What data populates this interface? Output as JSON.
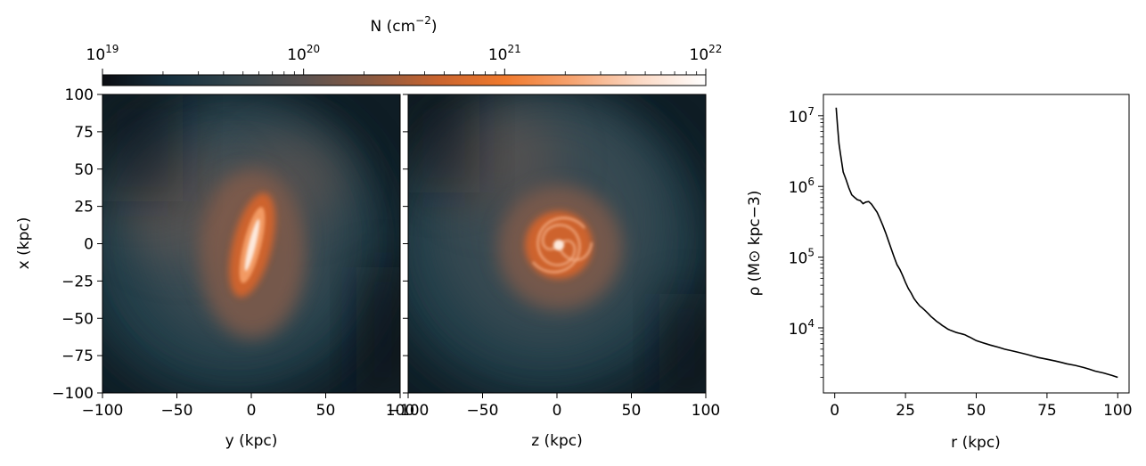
{
  "colorbar": {
    "label_main": "N (cm",
    "label_exp": "−2",
    "label_close": ")",
    "ticks": [
      {
        "value": 19,
        "base": "10",
        "exp": "19"
      },
      {
        "value": 20,
        "base": "10",
        "exp": "20"
      },
      {
        "value": 21,
        "base": "10",
        "exp": "21"
      },
      {
        "value": 22,
        "base": "10",
        "exp": "22"
      }
    ],
    "range_log10": [
      19,
      22
    ],
    "scale": "log",
    "colors": [
      "#0b0d12",
      "#17303e",
      "#34454c",
      "#5a5250",
      "#8a5a42",
      "#c9642f",
      "#f07a2e",
      "#f6a370",
      "#fbd8c3",
      "#ffffff"
    ]
  },
  "chart_data": [
    {
      "type": "heatmap",
      "title": "",
      "xlabel": "y (kpc)",
      "ylabel": "x (kpc)",
      "xlim": [
        -100,
        100
      ],
      "ylim": [
        -100,
        100
      ],
      "xticks": [
        "−100",
        "−50",
        "0",
        "50",
        "100"
      ],
      "yticks": [
        "100",
        "75",
        "50",
        "25",
        "0",
        "−25",
        "−50",
        "−75",
        "−100"
      ],
      "view": "edge-on"
    },
    {
      "type": "heatmap",
      "title": "",
      "xlabel": "z (kpc)",
      "ylabel": "",
      "xlim": [
        -100,
        100
      ],
      "ylim": [
        -100,
        100
      ],
      "xticks": [
        "−100",
        "−50",
        "0",
        "50",
        "100"
      ],
      "view": "face-on"
    },
    {
      "type": "line",
      "title": "",
      "xlabel": "r (kpc)",
      "ylabel": "ρ (M⊙ kpc−3)",
      "xlim": [
        -4,
        104
      ],
      "ylim_log10": [
        3.08,
        7.3
      ],
      "yscale": "log",
      "xticks": [
        "0",
        "25",
        "50",
        "75",
        "100"
      ],
      "yticks": [
        {
          "value": 4,
          "base": "10",
          "exp": "4"
        },
        {
          "value": 5,
          "base": "10",
          "exp": "5"
        },
        {
          "value": 6,
          "base": "10",
          "exp": "6"
        },
        {
          "value": 7,
          "base": "10",
          "exp": "7"
        }
      ],
      "series": [
        {
          "color": "#000000",
          "x": [
            0.5,
            1.0,
            1.5,
            2.0,
            3.0,
            4.0,
            5.0,
            6.0,
            7.0,
            8.0,
            9.0,
            10.0,
            11.0,
            12.0,
            13.0,
            14.0,
            15.0,
            16.0,
            17.0,
            18.0,
            19.0,
            20.0,
            21.0,
            22.0,
            23.0,
            24.0,
            25.0,
            26.0,
            27.0,
            28.0,
            29.0,
            30.0,
            31.0,
            32.0,
            33.0,
            34.0,
            35.0,
            36.0,
            37.0,
            38.0,
            39.0,
            40.0,
            41.0,
            42.0,
            43.0,
            44.0,
            45.0,
            46.0,
            47.0,
            48.0,
            50.0,
            52.0,
            55.0,
            58.0,
            60.0,
            63.0,
            65.0,
            68.0,
            70.0,
            72.0,
            75.0,
            78.0,
            80.0,
            82.0,
            85.0,
            88.0,
            90.0,
            92.0,
            95.0,
            98.0,
            100.0
          ],
          "y": [
            13000000,
            7000000,
            4000000,
            2900000,
            1600000,
            1250000,
            950000,
            760000,
            700000,
            650000,
            630000,
            570000,
            600000,
            610000,
            560000,
            490000,
            430000,
            350000,
            280000,
            220000,
            170000,
            130000,
            100000,
            78000,
            67000,
            55000,
            44000,
            36000,
            31000,
            26000,
            23000,
            20500,
            19000,
            17500,
            16000,
            14500,
            13400,
            12400,
            11600,
            10800,
            10200,
            9600,
            9200,
            8900,
            8600,
            8400,
            8200,
            8000,
            7600,
            7300,
            6600,
            6200,
            5700,
            5300,
            5000,
            4700,
            4500,
            4200,
            4000,
            3800,
            3600,
            3400,
            3250,
            3100,
            2950,
            2750,
            2600,
            2450,
            2300,
            2120,
            2000
          ]
        }
      ]
    }
  ]
}
